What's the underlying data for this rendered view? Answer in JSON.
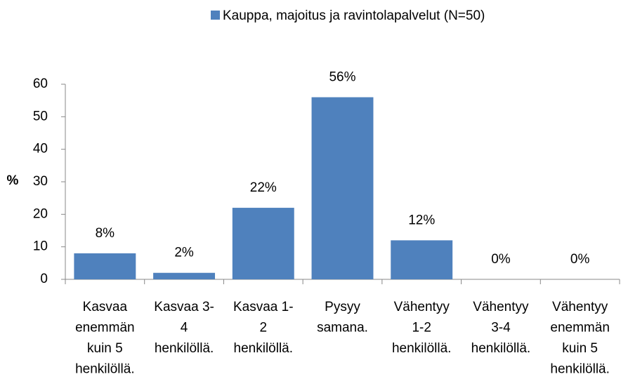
{
  "chart_data": {
    "type": "bar",
    "categories": [
      [
        "Kasvaa",
        "enemmän",
        "kuin 5",
        "henkilöllä."
      ],
      [
        "Kasvaa 3-",
        "4",
        "henkilöllä."
      ],
      [
        "Kasvaa 1-",
        "2",
        "henkilöllä."
      ],
      [
        "Pysyy",
        "samana."
      ],
      [
        "Vähentyy",
        "1-2",
        "henkilöllä."
      ],
      [
        "Vähentyy",
        "3-4",
        "henkilöllä."
      ],
      [
        "Vähentyy",
        "enemmän",
        "kuin 5",
        "henkilöllä."
      ]
    ],
    "series": [
      {
        "name": "Kauppa, majoitus ja ravintolapalvelut (N=50)",
        "color": "#4f81bd",
        "values": [
          8,
          2,
          22,
          56,
          12,
          0,
          0
        ],
        "value_labels": [
          "8%",
          "2%",
          "22%",
          "56%",
          "12%",
          "0%",
          "0%"
        ]
      }
    ],
    "ylabel": "%",
    "ylim": [
      0,
      60
    ],
    "yticks": [
      0,
      10,
      20,
      30,
      40,
      50,
      60
    ],
    "grid": false,
    "legend": "top"
  }
}
